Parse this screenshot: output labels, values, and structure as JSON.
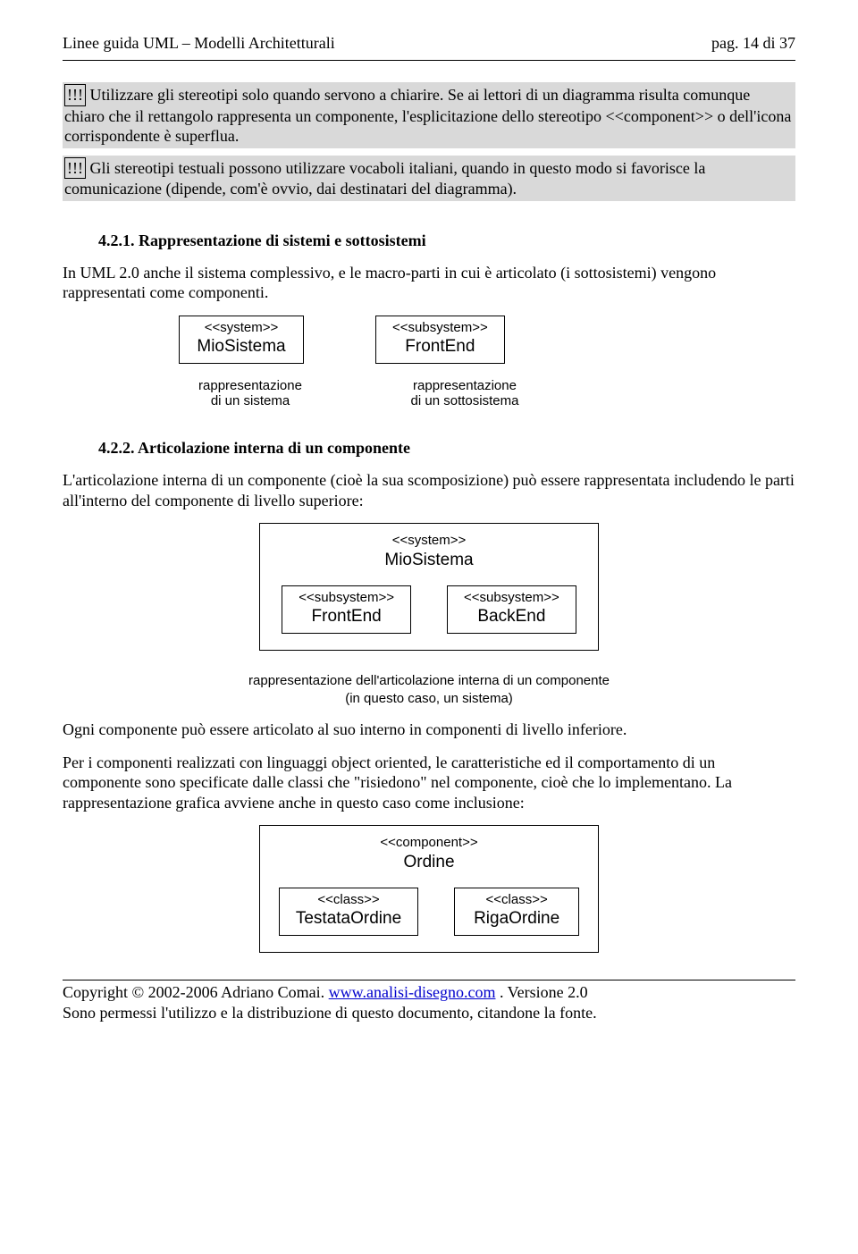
{
  "header": {
    "left": "Linee guida UML – Modelli Architetturali",
    "right": "pag. 14 di 37"
  },
  "note1": {
    "bang": "!!!",
    "text": " Utilizzare gli stereotipi solo quando servono a chiarire. Se ai lettori di un diagramma risulta comunque chiaro che il rettangolo rappresenta un componente, l'esplicitazione dello stereotipo <<component>> o dell'icona corrispondente è superflua."
  },
  "note2": {
    "bang": "!!!",
    "text": " Gli stereotipi testuali possono utilizzare vocaboli italiani, quando in questo modo si favorisce la comunicazione (dipende, com'è ovvio, dai destinatari del diagramma)."
  },
  "sec1": {
    "num": "4.2.1.",
    "title": "Rappresentazione di sistemi e sottosistemi"
  },
  "p1": "In UML 2.0 anche il sistema complessivo, e le macro-parti in cui è articolato (i sottosistemi) vengono rappresentati come componenti.",
  "d1": {
    "box1": {
      "stereo": "<<system>>",
      "name": "MioSistema"
    },
    "box2": {
      "stereo": "<<subsystem>>",
      "name": "FrontEnd"
    },
    "cap1a": "rappresentazione",
    "cap1b": "di un sistema",
    "cap2a": "rappresentazione",
    "cap2b": "di un sottosistema"
  },
  "sec2": {
    "num": "4.2.2.",
    "title": "Articolazione interna di un componente"
  },
  "p2": "L'articolazione interna di un componente (cioè la sua scomposizione) può essere rappresentata includendo le parti all'interno del componente di livello superiore:",
  "d2": {
    "outer": {
      "stereo": "<<system>>",
      "name": "MioSistema"
    },
    "inner1": {
      "stereo": "<<subsystem>>",
      "name": "FrontEnd"
    },
    "inner2": {
      "stereo": "<<subsystem>>",
      "name": "BackEnd"
    },
    "cap1": "rappresentazione dell'articolazione interna di un componente",
    "cap2": "(in questo caso, un sistema)"
  },
  "p3": "Ogni componente può essere articolato al suo interno in componenti di livello inferiore.",
  "p4": "Per i componenti realizzati con linguaggi object oriented, le caratteristiche ed il comportamento di un componente sono specificate dalle classi che \"risiedono\" nel componente, cioè che lo implementano. La rappresentazione grafica avviene anche in questo caso come inclusione:",
  "d3": {
    "outer": {
      "stereo": "<<component>>",
      "name": "Ordine"
    },
    "inner1": {
      "stereo": "<<class>>",
      "name": "TestataOrdine"
    },
    "inner2": {
      "stereo": "<<class>>",
      "name": "RigaOrdine"
    }
  },
  "footer": {
    "line1a": "Copyright © 2002-2006 Adriano Comai. ",
    "link": "www.analisi-disegno.com",
    "line1b": " . Versione 2.0",
    "line2": "Sono permessi l'utilizzo e la distribuzione di questo documento, citandone la fonte."
  }
}
